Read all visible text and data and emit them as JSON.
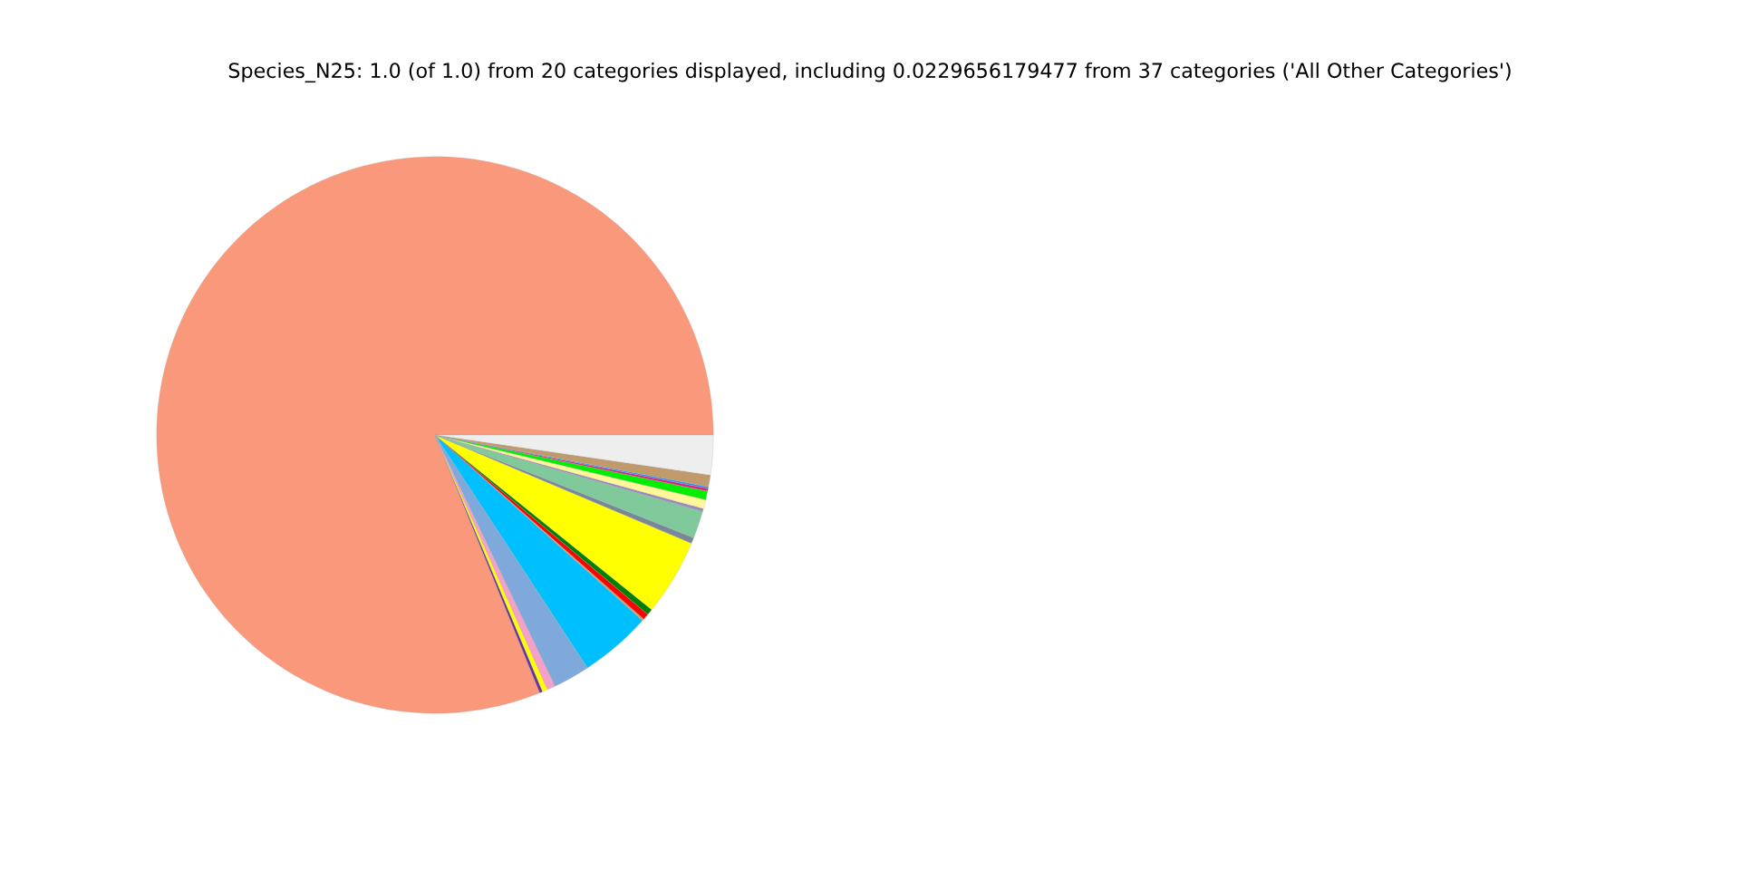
{
  "chart_data": {
    "type": "pie",
    "title": "Species_N25: 1.0 (of 1.0) from 20 categories displayed, including 0.0229656179477 from 37 categories ('All Other Categories')",
    "categories": [
      null,
      null,
      null,
      null,
      null,
      null,
      null,
      null,
      null,
      null,
      null,
      null,
      null,
      null,
      null,
      null,
      null,
      null,
      null
    ],
    "values": [
      81.14,
      0.18,
      0.3,
      0.48,
      2.13,
      4.16,
      0.11,
      0.35,
      0.35,
      4.44,
      0.34,
      1.58,
      0.18,
      0.52,
      0.5,
      0.16,
      0.1,
      0.68,
      2.3
    ],
    "colors": [
      "#f9987a",
      "#663399",
      "#ffff00",
      "#f4a0c8",
      "#7fa9db",
      "#00bfff",
      "#c8a06e",
      "#ff0000",
      "#008000",
      "#ffff00",
      "#778899",
      "#80c99a",
      "#9b88c0",
      "#fff799",
      "#00ee00",
      "#e0207a",
      "#1e90ff",
      "#c19a6b",
      "#eeeeee"
    ]
  }
}
